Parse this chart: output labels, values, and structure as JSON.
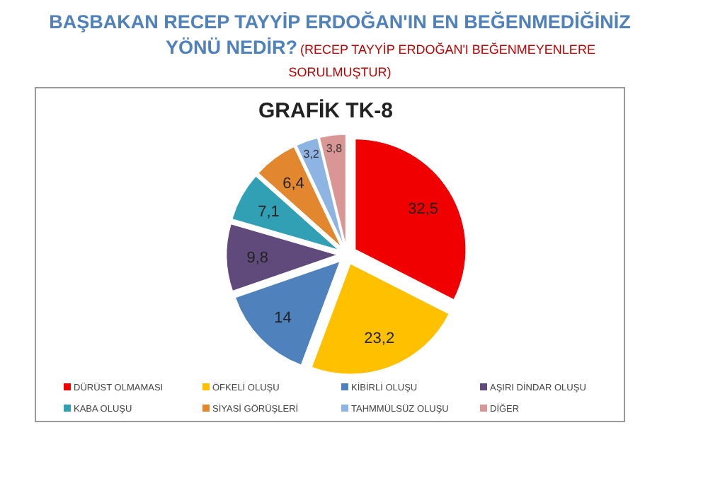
{
  "chart_data": {
    "type": "pie",
    "title": "BAŞBAKAN RECEP TAYYİP ERDOĞAN'IN EN BEĞENMEDİĞİNİZ YÖNÜ NEDİR?",
    "subtitle": "(RECEP TAYYİP ERDOĞAN'I BEĞENMEYENLERE SORULMUŞTUR)",
    "annotations": [
      "GRAFİK TK-8"
    ],
    "categories": [
      "DÜRÜST OLMAMASI",
      "ÖFKELİ OLUŞU",
      "KİBİRLİ OLUŞU",
      "AŞIRI DİNDAR OLUŞU",
      "KABA OLUŞU",
      "SİYASİ GÖRÜŞLERİ",
      "TAHMMÜLSÜZ OLUŞU",
      "DİĞER"
    ],
    "values": [
      32.5,
      23.2,
      14,
      9.8,
      7.1,
      6.4,
      3.2,
      3.8
    ],
    "value_labels": [
      "32,5",
      "23,2",
      "14",
      "9,8",
      "7,1",
      "6,4",
      "3,2",
      "3,8"
    ],
    "colors": [
      "#f00000",
      "#ffc000",
      "#4f81bd",
      "#604a7b",
      "#31a0b5",
      "#e3872e",
      "#8eb4e3",
      "#d99694"
    ],
    "legend": "bottom"
  }
}
